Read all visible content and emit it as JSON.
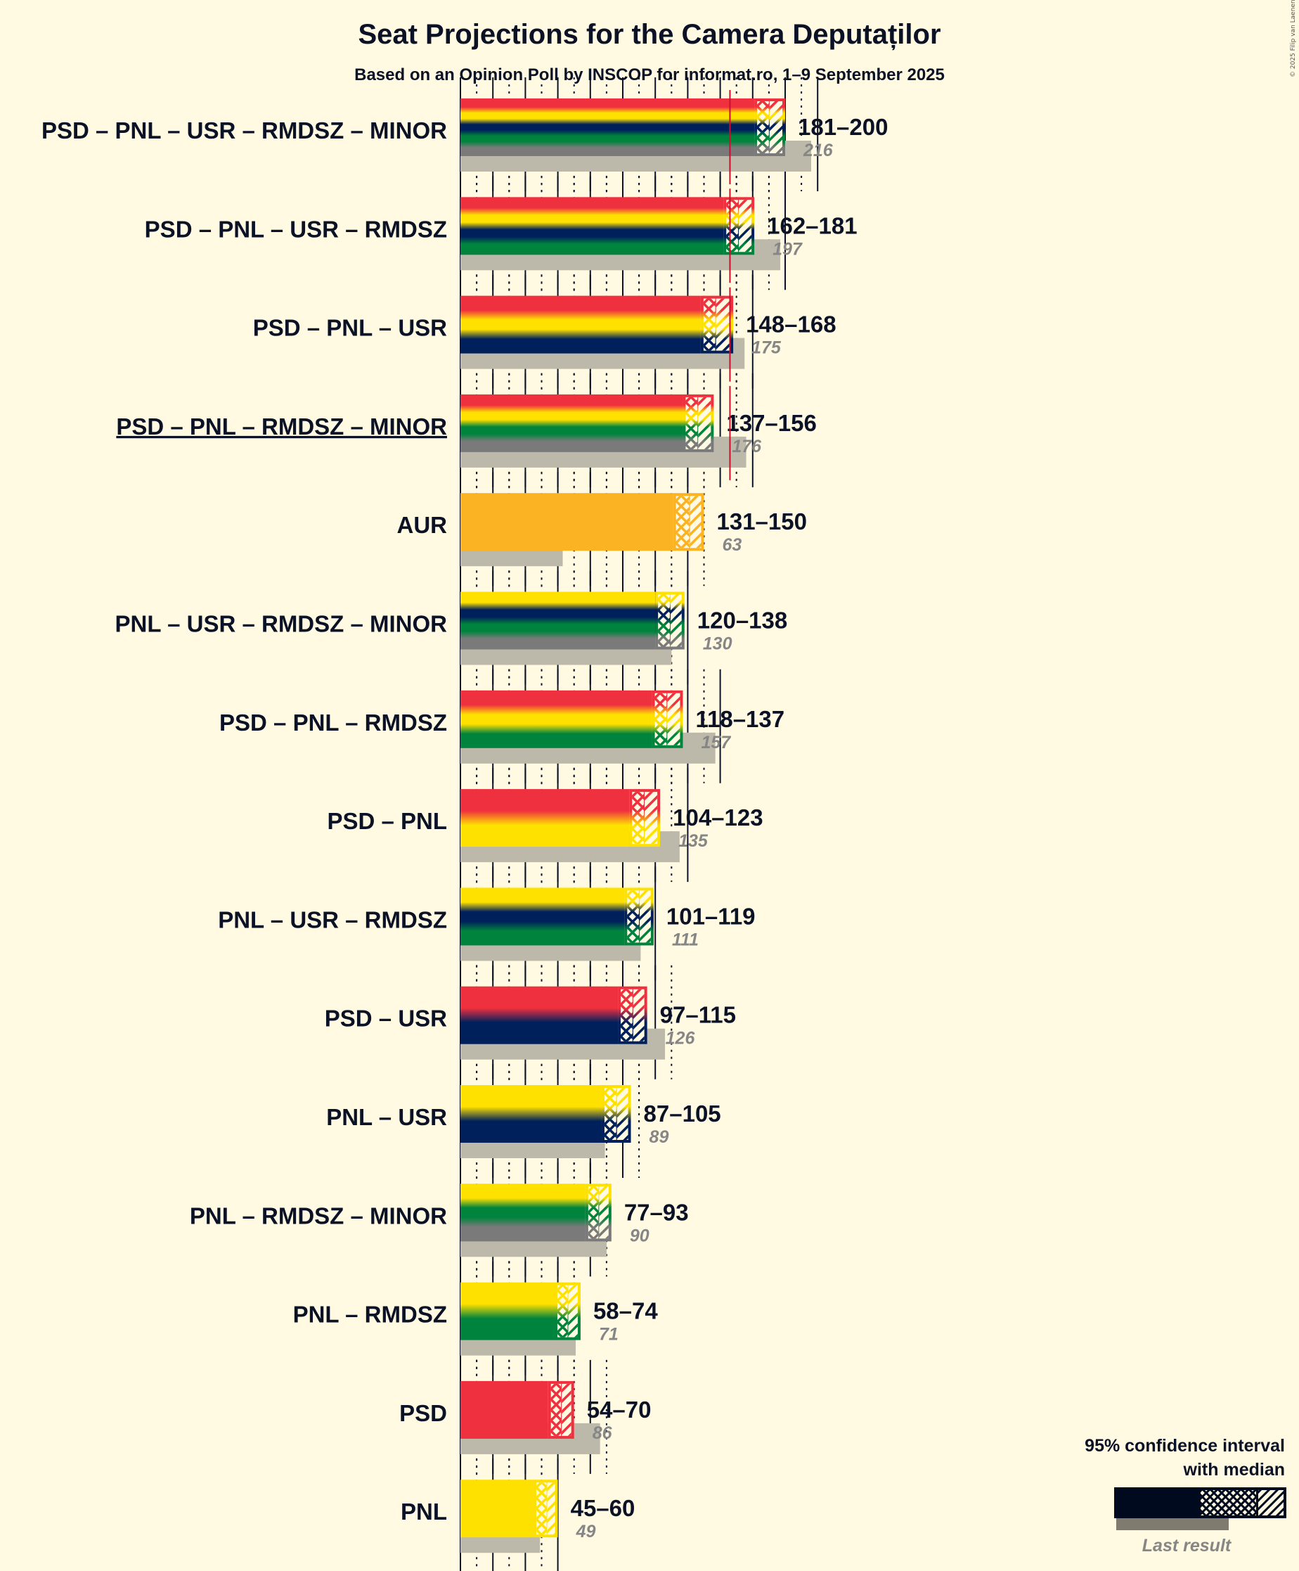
{
  "chart_data": {
    "type": "bar",
    "title": "Seat Projections for the Camera Deputaților",
    "subtitle": "Based on an Opinion Poll by INSCOP for informat.ro, 1–9 September 2025",
    "copyright": "© 2025 Filip van Laenen",
    "xlabel": "",
    "ylabel": "",
    "xlim": [
      0,
      230
    ],
    "grid": {
      "major_step": 20,
      "minor_step": 10,
      "on": true
    },
    "majority": 166,
    "legend": {
      "title_line1": "95% confidence interval",
      "title_line2": "with median",
      "last_result_label": "Last result",
      "placement": "bottom-right"
    },
    "colors": {
      "PSD": "#ef303f",
      "PNL": "#ffe100",
      "USR": "#00205b",
      "RMDSZ": "#00843d",
      "MINOR": "#7a7a7a",
      "AUR": "#fbb223",
      "last_result": "#bcb8aa",
      "majority_line": "#c8102e",
      "background": "#fffae1"
    },
    "categories": [
      "PSD – PNL – USR – RMDSZ – MINOR",
      "PSD – PNL – USR – RMDSZ",
      "PSD – PNL – USR",
      "PSD – PNL – RMDSZ – MINOR",
      "AUR",
      "PNL – USR – RMDSZ – MINOR",
      "PSD – PNL – RMDSZ",
      "PSD – PNL",
      "PNL – USR – RMDSZ",
      "PSD – USR",
      "PNL – USR",
      "PNL – RMDSZ – MINOR",
      "PNL – RMDSZ",
      "PSD",
      "PNL"
    ],
    "series": [
      {
        "label": "PSD – PNL – USR – RMDSZ – MINOR",
        "parties": [
          "PSD",
          "PNL",
          "USR",
          "RMDSZ",
          "MINOR"
        ],
        "low": 181,
        "median": 190,
        "high": 200,
        "range_text": "181–200",
        "last": 216,
        "last_text": "216",
        "underlined": false
      },
      {
        "label": "PSD – PNL – USR – RMDSZ",
        "parties": [
          "PSD",
          "PNL",
          "USR",
          "RMDSZ"
        ],
        "low": 162,
        "median": 171,
        "high": 181,
        "range_text": "162–181",
        "last": 197,
        "last_text": "197",
        "underlined": false
      },
      {
        "label": "PSD – PNL – USR",
        "parties": [
          "PSD",
          "PNL",
          "USR"
        ],
        "low": 148,
        "median": 157,
        "high": 168,
        "range_text": "148–168",
        "last": 175,
        "last_text": "175",
        "underlined": false
      },
      {
        "label": "PSD – PNL – RMDSZ – MINOR",
        "parties": [
          "PSD",
          "PNL",
          "RMDSZ",
          "MINOR"
        ],
        "low": 137,
        "median": 146,
        "high": 156,
        "range_text": "137–156",
        "last": 176,
        "last_text": "176",
        "underlined": true
      },
      {
        "label": "AUR",
        "parties": [
          "AUR"
        ],
        "low": 131,
        "median": 141,
        "high": 150,
        "range_text": "131–150",
        "last": 63,
        "last_text": "63",
        "underlined": false
      },
      {
        "label": "PNL – USR – RMDSZ – MINOR",
        "parties": [
          "PNL",
          "USR",
          "RMDSZ",
          "MINOR"
        ],
        "low": 120,
        "median": 129,
        "high": 138,
        "range_text": "120–138",
        "last": 130,
        "last_text": "130",
        "underlined": false
      },
      {
        "label": "PSD – PNL – RMDSZ",
        "parties": [
          "PSD",
          "PNL",
          "RMDSZ"
        ],
        "low": 118,
        "median": 127,
        "high": 137,
        "range_text": "118–137",
        "last": 157,
        "last_text": "157",
        "underlined": false
      },
      {
        "label": "PSD – PNL",
        "parties": [
          "PSD",
          "PNL"
        ],
        "low": 104,
        "median": 113,
        "high": 123,
        "range_text": "104–123",
        "last": 135,
        "last_text": "135",
        "underlined": false
      },
      {
        "label": "PNL – USR – RMDSZ",
        "parties": [
          "PNL",
          "USR",
          "RMDSZ"
        ],
        "low": 101,
        "median": 110,
        "high": 119,
        "range_text": "101–119",
        "last": 111,
        "last_text": "111",
        "underlined": false
      },
      {
        "label": "PSD – USR",
        "parties": [
          "PSD",
          "USR"
        ],
        "low": 97,
        "median": 106,
        "high": 115,
        "range_text": "97–115",
        "last": 126,
        "last_text": "126",
        "underlined": false
      },
      {
        "label": "PNL – USR",
        "parties": [
          "PNL",
          "USR"
        ],
        "low": 87,
        "median": 96,
        "high": 105,
        "range_text": "87–105",
        "last": 89,
        "last_text": "89",
        "underlined": false
      },
      {
        "label": "PNL – RMDSZ – MINOR",
        "parties": [
          "PNL",
          "RMDSZ",
          "MINOR"
        ],
        "low": 77,
        "median": 85,
        "high": 93,
        "range_text": "77–93",
        "last": 90,
        "last_text": "90",
        "underlined": false
      },
      {
        "label": "PNL – RMDSZ",
        "parties": [
          "PNL",
          "RMDSZ"
        ],
        "low": 58,
        "median": 66,
        "high": 74,
        "range_text": "58–74",
        "last": 71,
        "last_text": "71",
        "underlined": false
      },
      {
        "label": "PSD",
        "parties": [
          "PSD"
        ],
        "low": 54,
        "median": 62,
        "high": 70,
        "range_text": "54–70",
        "last": 86,
        "last_text": "86",
        "underlined": false
      },
      {
        "label": "PNL",
        "parties": [
          "PNL"
        ],
        "low": 45,
        "median": 53,
        "high": 60,
        "range_text": "45–60",
        "last": 49,
        "last_text": "49",
        "underlined": false
      }
    ]
  }
}
